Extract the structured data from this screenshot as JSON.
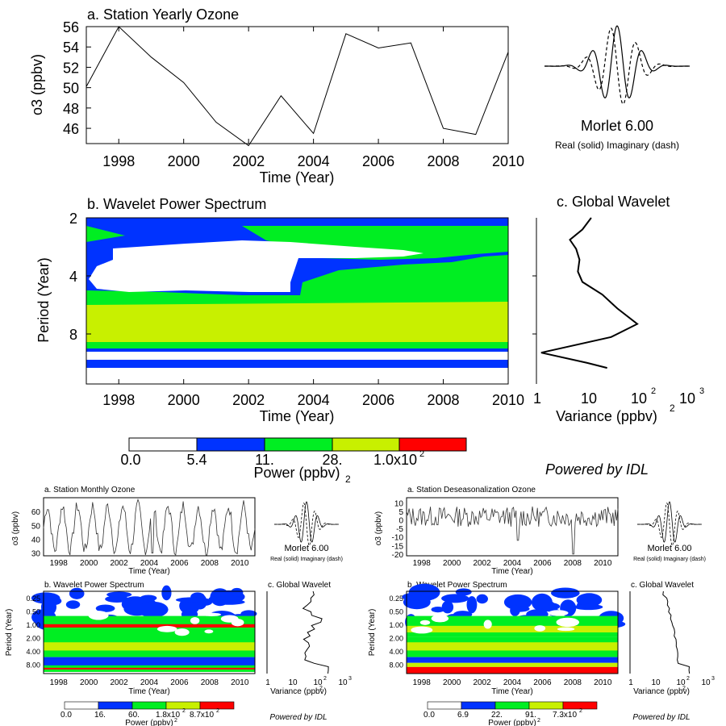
{
  "colors": {
    "white": "#ffffff",
    "blue": "#0033ff",
    "green": "#00ee22",
    "lime": "#c8f000",
    "red": "#ff0000",
    "line": "#000000"
  },
  "main": {
    "panel_a": {
      "title": "a. Station Yearly Ozone",
      "ylabel": "o3 (ppbv)",
      "xlabel": "Time (Year)"
    },
    "morlet": {
      "label": "Morlet 6.00",
      "legend": "Real (solid)  Imaginary (dash)"
    },
    "panel_b": {
      "title": "b. Wavelet Power Spectrum",
      "ylabel": "Period (Year)",
      "xlabel": "Time (Year)"
    },
    "panel_c": {
      "title": "c. Global Wavelet",
      "xlabel": "Variance (ppbv)",
      "xlabel_exp": "2",
      "xticks": [
        "1",
        "10",
        "10",
        "10"
      ],
      "xtick_exps": [
        "",
        "",
        "2",
        "3"
      ]
    },
    "colorbar": {
      "label": "Power (ppbv)",
      "label_exp": "2",
      "ticks": [
        "0.0",
        "5.4",
        "11.",
        "28.",
        "1.0x10"
      ],
      "last_exp": "2"
    },
    "powered_by": "Powered by IDL"
  },
  "left": {
    "panel_a": {
      "title": "a. Station Monthly Ozone",
      "ylabel": "o3 (ppbv)",
      "xlabel": "Time (Year)"
    },
    "morlet": {
      "label": "Morlet 6.00",
      "legend": "Real (solid)  Imaginary (dash)"
    },
    "panel_b": {
      "title": "b. Wavelet Power Spectrum",
      "ylabel": "Period (Year)",
      "xlabel": "Time (Year)"
    },
    "panel_c": {
      "title": "c. Global Wavelet",
      "xlabel": "Variance (ppbv)",
      "xlabel_exp": "2",
      "xticks": [
        "1",
        "10",
        "10",
        "10"
      ],
      "xtick_exps": [
        "",
        "",
        "2",
        "3"
      ]
    },
    "colorbar": {
      "label": "Power (ppbv)",
      "label_exp": "2",
      "ticks": [
        "0.0",
        "16.",
        "60.",
        "1.8x10",
        "8.7x10"
      ],
      "tick_exps": [
        "",
        "",
        "",
        "2",
        "2"
      ]
    },
    "powered_by": "Powered by IDL"
  },
  "right": {
    "panel_a": {
      "title": "a. Station Deseasonalization Ozone",
      "ylabel": "o3 (ppbv)",
      "xlabel": "Time (Year)"
    },
    "morlet": {
      "label": "Morlet 6.00",
      "legend": "Real (solid)  Imaginary (dash)"
    },
    "panel_b": {
      "title": "b. Wavelet Power Spectrum",
      "ylabel": "Period (Year)",
      "xlabel": "Time (Year)"
    },
    "panel_c": {
      "title": "c. Global Wavelet",
      "xlabel": "Variance (ppbv)",
      "xlabel_exp": "2",
      "xticks": [
        "1",
        "10",
        "10",
        "10"
      ],
      "xtick_exps": [
        "",
        "",
        "2",
        "3"
      ]
    },
    "colorbar": {
      "label": "Power (ppbv)",
      "label_exp": "2",
      "ticks": [
        "0.0",
        "6.9",
        "22.",
        "91.",
        "7.3x10"
      ],
      "tick_exps": [
        "",
        "",
        "",
        "",
        "2"
      ]
    },
    "powered_by": "Powered by IDL"
  },
  "chart_data": [
    {
      "type": "line",
      "title": "a. Station Yearly Ozone",
      "xlabel": "Time (Year)",
      "ylabel": "o3 (ppbv)",
      "x": [
        1997,
        1998,
        1999,
        2000,
        2001,
        2002,
        2003,
        2004,
        2005,
        2006,
        2007,
        2008,
        2009,
        2010
      ],
      "values": [
        50.1,
        56.0,
        53.0,
        50.5,
        46.6,
        44.3,
        49.2,
        45.5,
        55.3,
        53.9,
        54.4,
        46.0,
        45.4,
        53.5
      ],
      "xlim": [
        1997,
        2010
      ],
      "ylim": [
        44.5,
        56
      ],
      "xticks": [
        "1998",
        "2000",
        "2002",
        "2004",
        "2006",
        "2008",
        "2010"
      ],
      "yticks": [
        "46",
        "48",
        "50",
        "52",
        "54",
        "56"
      ]
    },
    {
      "type": "heatmap",
      "title": "b. Wavelet Power Spectrum",
      "xlabel": "Time (Year)",
      "ylabel": "Period (Year)",
      "xlim": [
        1997,
        2010
      ],
      "ylim": [
        2,
        12
      ],
      "y_scale": "log",
      "xticks": [
        "1998",
        "2000",
        "2002",
        "2004",
        "2006",
        "2008",
        "2010"
      ],
      "yticks": [
        "2",
        "4",
        "8"
      ],
      "levels": [
        "0.0",
        "5.4",
        "11.",
        "28.",
        "1.0x10^2"
      ]
    },
    {
      "type": "line",
      "title": "c. Global Wavelet",
      "xlabel": "Variance (ppbv)^2",
      "x_scale": "log",
      "xlim": [
        1,
        1000
      ],
      "variance": [
        12,
        8,
        4.5,
        6,
        7,
        6.5,
        8,
        20,
        40,
        100,
        30,
        1.2,
        10,
        25
      ],
      "period": [
        2.0,
        2.3,
        2.6,
        2.9,
        3.3,
        3.8,
        4.3,
        5.0,
        5.9,
        7.1,
        8.3,
        10.0,
        11.3,
        12.0
      ]
    }
  ]
}
